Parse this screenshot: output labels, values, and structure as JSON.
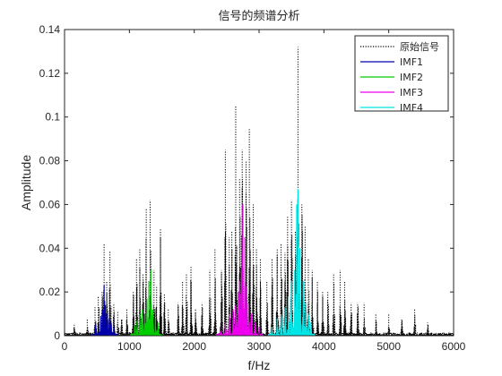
{
  "chart_data": {
    "type": "line",
    "title": "信号的频谱分析",
    "xlabel": "f/Hz",
    "ylabel": "Amplitude",
    "xlim": [
      0,
      6000
    ],
    "ylim": [
      0,
      0.14
    ],
    "x_ticks": [
      "0",
      "1000",
      "2000",
      "3000",
      "4000",
      "5000",
      "6000"
    ],
    "y_ticks": [
      "0",
      "0.02",
      "0.04",
      "0.06",
      "0.08",
      "0.1",
      "0.12",
      "0.14"
    ],
    "grid": false,
    "legend_position": "top-right",
    "series": [
      {
        "name": "原始信号",
        "color": "#000000",
        "style": "dotted",
        "peaks": [
          [
            150,
            0.005
          ],
          [
            350,
            0.008
          ],
          [
            470,
            0.013
          ],
          [
            520,
            0.018
          ],
          [
            580,
            0.02
          ],
          [
            610,
            0.042
          ],
          [
            650,
            0.025
          ],
          [
            700,
            0.039
          ],
          [
            760,
            0.015
          ],
          [
            820,
            0.011
          ],
          [
            880,
            0.008
          ],
          [
            960,
            0.012
          ],
          [
            1060,
            0.02
          ],
          [
            1110,
            0.035
          ],
          [
            1160,
            0.04
          ],
          [
            1210,
            0.028
          ],
          [
            1260,
            0.058
          ],
          [
            1320,
            0.062
          ],
          [
            1380,
            0.03
          ],
          [
            1420,
            0.023
          ],
          [
            1480,
            0.049
          ],
          [
            1540,
            0.019
          ],
          [
            1600,
            0.012
          ],
          [
            1750,
            0.015
          ],
          [
            1820,
            0.025
          ],
          [
            1880,
            0.028
          ],
          [
            1950,
            0.032
          ],
          [
            2020,
            0.012
          ],
          [
            2120,
            0.015
          ],
          [
            2240,
            0.03
          ],
          [
            2320,
            0.04
          ],
          [
            2420,
            0.03
          ],
          [
            2480,
            0.085
          ],
          [
            2540,
            0.045
          ],
          [
            2580,
            0.048
          ],
          [
            2640,
            0.105
          ],
          [
            2700,
            0.072
          ],
          [
            2740,
            0.085
          ],
          [
            2800,
            0.08
          ],
          [
            2850,
            0.095
          ],
          [
            2910,
            0.06
          ],
          [
            2960,
            0.04
          ],
          [
            3020,
            0.035
          ],
          [
            3120,
            0.025
          ],
          [
            3200,
            0.035
          ],
          [
            3280,
            0.04
          ],
          [
            3340,
            0.042
          ],
          [
            3400,
            0.038
          ],
          [
            3440,
            0.055
          ],
          [
            3500,
            0.062
          ],
          [
            3560,
            0.048
          ],
          [
            3600,
            0.132
          ],
          [
            3660,
            0.06
          ],
          [
            3710,
            0.05
          ],
          [
            3760,
            0.035
          ],
          [
            3820,
            0.03
          ],
          [
            3900,
            0.025
          ],
          [
            3980,
            0.02
          ],
          [
            4060,
            0.02
          ],
          [
            4150,
            0.028
          ],
          [
            4250,
            0.03
          ],
          [
            4320,
            0.025
          ],
          [
            4420,
            0.015
          ],
          [
            4520,
            0.015
          ],
          [
            4620,
            0.015
          ],
          [
            4800,
            0.01
          ],
          [
            5000,
            0.01
          ],
          [
            5200,
            0.008
          ],
          [
            5400,
            0.012
          ],
          [
            5600,
            0.006
          ]
        ]
      },
      {
        "name": "IMF1",
        "color": "#0000AA",
        "style": "solid",
        "peaks": [
          [
            480,
            0.005
          ],
          [
            520,
            0.006
          ],
          [
            560,
            0.009
          ],
          [
            590,
            0.012
          ],
          [
            610,
            0.023
          ],
          [
            630,
            0.014
          ],
          [
            660,
            0.01
          ],
          [
            690,
            0.008
          ],
          [
            720,
            0.006
          ],
          [
            760,
            0.004
          ]
        ]
      },
      {
        "name": "IMF2",
        "color": "#00CC00",
        "style": "solid",
        "peaks": [
          [
            1080,
            0.005
          ],
          [
            1120,
            0.007
          ],
          [
            1160,
            0.01
          ],
          [
            1200,
            0.012
          ],
          [
            1240,
            0.01
          ],
          [
            1270,
            0.017
          ],
          [
            1300,
            0.025
          ],
          [
            1330,
            0.03
          ],
          [
            1360,
            0.012
          ],
          [
            1400,
            0.008
          ],
          [
            1440,
            0.006
          ]
        ]
      },
      {
        "name": "IMF3",
        "color": "#EE00EE",
        "style": "solid",
        "peaks": [
          [
            2400,
            0.004
          ],
          [
            2480,
            0.006
          ],
          [
            2540,
            0.01
          ],
          [
            2600,
            0.012
          ],
          [
            2640,
            0.014
          ],
          [
            2680,
            0.02
          ],
          [
            2700,
            0.025
          ],
          [
            2730,
            0.03
          ],
          [
            2750,
            0.06
          ],
          [
            2780,
            0.045
          ],
          [
            2810,
            0.022
          ],
          [
            2840,
            0.015
          ],
          [
            2880,
            0.01
          ],
          [
            2940,
            0.006
          ],
          [
            3000,
            0.004
          ]
        ]
      },
      {
        "name": "IMF4",
        "color": "#00E5E5",
        "style": "solid",
        "peaks": [
          [
            3200,
            0.004
          ],
          [
            3280,
            0.008
          ],
          [
            3340,
            0.01
          ],
          [
            3400,
            0.013
          ],
          [
            3450,
            0.018
          ],
          [
            3500,
            0.025
          ],
          [
            3550,
            0.03
          ],
          [
            3580,
            0.06
          ],
          [
            3600,
            0.067
          ],
          [
            3630,
            0.04
          ],
          [
            3680,
            0.025
          ],
          [
            3720,
            0.015
          ],
          [
            3760,
            0.01
          ],
          [
            3800,
            0.006
          ]
        ]
      }
    ]
  }
}
